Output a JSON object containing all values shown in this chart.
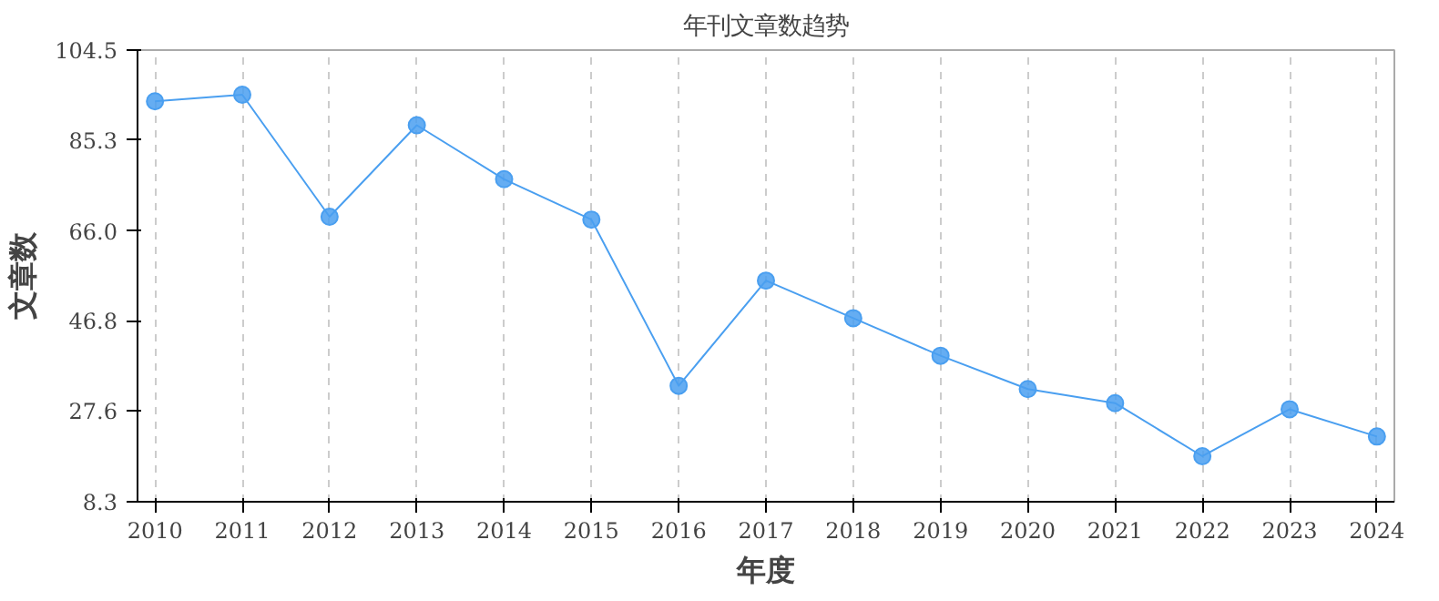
{
  "chart_data": {
    "type": "line",
    "title": "年刊文章数趋势",
    "xlabel": "年度",
    "ylabel": "文章数",
    "x": [
      2010,
      2011,
      2012,
      2013,
      2014,
      2015,
      2016,
      2017,
      2018,
      2019,
      2020,
      2021,
      2022,
      2023,
      2024
    ],
    "series": [
      {
        "color": "#4a9ff0",
        "values": [
          93.6,
          95,
          69,
          88.5,
          77,
          68.4,
          33,
          55.4,
          47.4,
          39.4,
          32.3,
          29.3,
          18,
          28,
          22.2
        ]
      }
    ],
    "xlim": [
      2009.8,
      2024.2
    ],
    "xticks": [
      2010,
      2011,
      2012,
      2013,
      2014,
      2015,
      2016,
      2017,
      2018,
      2019,
      2020,
      2021,
      2022,
      2023,
      2024
    ],
    "ylim": [
      8.3,
      104.5
    ],
    "yticks": [
      8.3,
      27.6,
      46.8,
      {
        "value": 66,
        "label": "66.0"
      },
      {
        "value": 85.3,
        "label": "85.3"
      },
      104.5
    ],
    "grid": "x",
    "marker": "circle",
    "line_style": "solid"
  }
}
